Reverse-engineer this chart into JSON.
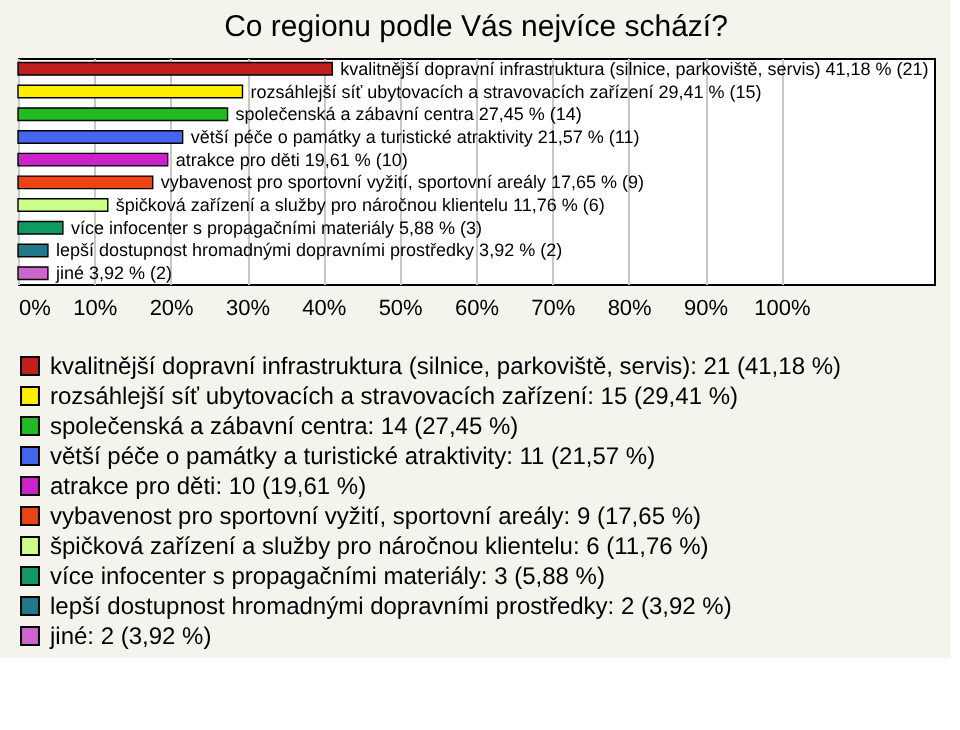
{
  "chart_data": {
    "type": "bar",
    "orientation": "horizontal",
    "title": "Co regionu podle Vás nejvíce schází?",
    "categories": [
      "kvalitnější dopravní infrastruktura (silnice, parkoviště, servis)",
      "rozsáhlejší síť ubytovacích a stravovacích zařízení",
      "společenská a zábavní centra",
      "větší péče o památky a turistické atraktivity",
      "atrakce pro děti",
      "vybavenost pro sportovní vyžití, sportovní areály",
      "špičková zařízení a služby pro náročnou klientelu",
      "více infocenter s propagačními materiály",
      "lepší dostupnost hromadnými dopravními prostředky",
      "jiné"
    ],
    "series": [
      {
        "name": "kvalitnější dopravní infrastruktura (silnice, parkoviště, servis): 21 (41,18 %)",
        "color": "#c0201c",
        "values": [
          41.18,
          null,
          null,
          null,
          null,
          null,
          null,
          null,
          null,
          null
        ],
        "value_labels": [
          "41,18 % (21)",
          null,
          null,
          null,
          null,
          null,
          null,
          null,
          null,
          null
        ]
      },
      {
        "name": "rozsáhlejší síť ubytovacích a stravovacích zařízení: 15 (29,41 %)",
        "color": "#ffee00",
        "values": [
          null,
          29.41,
          null,
          null,
          null,
          null,
          null,
          null,
          null,
          null
        ],
        "value_labels": [
          null,
          "29,41 % (15)",
          null,
          null,
          null,
          null,
          null,
          null,
          null,
          null
        ]
      },
      {
        "name": "společenská a zábavní centra: 14 (27,45 %)",
        "color": "#22bb22",
        "values": [
          null,
          null,
          27.45,
          null,
          null,
          null,
          null,
          null,
          null,
          null
        ],
        "value_labels": [
          null,
          null,
          "27,45 % (14)",
          null,
          null,
          null,
          null,
          null,
          null,
          null
        ]
      },
      {
        "name": "větší péče o památky a turistické atraktivity: 11 (21,57 %)",
        "color": "#4466ee",
        "values": [
          null,
          null,
          null,
          21.57,
          null,
          null,
          null,
          null,
          null,
          null
        ],
        "value_labels": [
          null,
          null,
          null,
          "21,57 % (11)",
          null,
          null,
          null,
          null,
          null,
          null
        ]
      },
      {
        "name": "atrakce pro děti: 10 (19,61 %)",
        "color": "#cc22cc",
        "values": [
          null,
          null,
          null,
          null,
          19.61,
          null,
          null,
          null,
          null,
          null
        ],
        "value_labels": [
          null,
          null,
          null,
          null,
          "19,61 % (10)",
          null,
          null,
          null,
          null,
          null
        ]
      },
      {
        "name": "vybavenost pro sportovní vyžití, sportovní areály: 9 (17,65 %)",
        "color": "#ee4411",
        "values": [
          null,
          null,
          null,
          null,
          null,
          17.65,
          null,
          null,
          null,
          null
        ],
        "value_labels": [
          null,
          null,
          null,
          null,
          null,
          "17,65 % (9)",
          null,
          null,
          null,
          null
        ]
      },
      {
        "name": "špičková zařízení a služby pro náročnou klientelu: 6 (11,76 %)",
        "color": "#ccff88",
        "values": [
          null,
          null,
          null,
          null,
          null,
          null,
          11.76,
          null,
          null,
          null
        ],
        "value_labels": [
          null,
          null,
          null,
          null,
          null,
          null,
          "11,76 % (6)",
          null,
          null,
          null
        ]
      },
      {
        "name": "více infocenter s propagačními materiály: 3 (5,88 %)",
        "color": "#119966",
        "values": [
          null,
          null,
          null,
          null,
          null,
          null,
          null,
          5.88,
          null,
          null
        ],
        "value_labels": [
          null,
          null,
          null,
          null,
          null,
          null,
          null,
          "5,88 % (3)",
          null,
          null
        ]
      },
      {
        "name": "lepší dostupnost hromadnými dopravními prostředky: 2 (3,92 %)",
        "color": "#227788",
        "values": [
          null,
          null,
          null,
          null,
          null,
          null,
          null,
          null,
          3.92,
          null
        ],
        "value_labels": [
          null,
          null,
          null,
          null,
          null,
          null,
          null,
          null,
          "3,92 % (2)",
          null
        ]
      },
      {
        "name": "jiné: 2 (3,92 %)",
        "color": "#cc66cc",
        "values": [
          null,
          null,
          null,
          null,
          null,
          null,
          null,
          null,
          null,
          3.92
        ],
        "value_labels": [
          null,
          null,
          null,
          null,
          null,
          null,
          null,
          null,
          null,
          "3,92 % (2)"
        ]
      }
    ],
    "xlim": [
      0,
      120
    ],
    "xticks": [
      {
        "value": 0,
        "label": "0%"
      },
      {
        "value": 10,
        "label": "10%"
      },
      {
        "value": 20,
        "label": "20%"
      },
      {
        "value": 30,
        "label": "30%"
      },
      {
        "value": 40,
        "label": "40%"
      },
      {
        "value": 50,
        "label": "50%"
      },
      {
        "value": 60,
        "label": "60%"
      },
      {
        "value": 70,
        "label": "70%"
      },
      {
        "value": 80,
        "label": "80%"
      },
      {
        "value": 90,
        "label": "90%"
      },
      {
        "value": 100,
        "label": "100%"
      }
    ],
    "grid": "x",
    "tick_labels": "x",
    "legend": "bottom"
  }
}
